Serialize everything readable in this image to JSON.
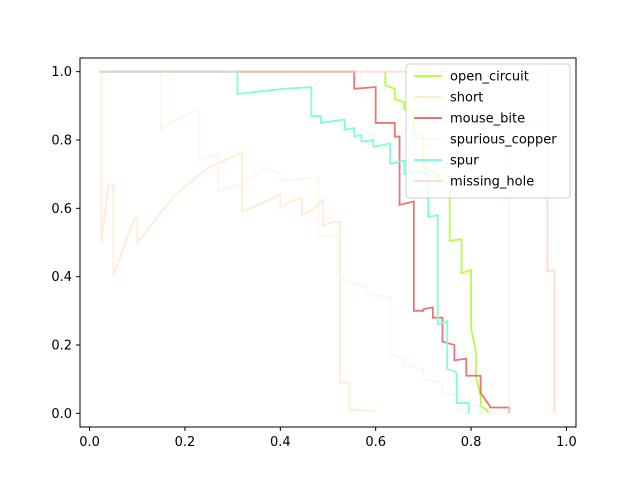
{
  "chart_data": {
    "type": "line",
    "title": "",
    "xlabel": "",
    "ylabel": "",
    "xlim": [
      -0.02,
      1.02
    ],
    "ylim": [
      -0.04,
      1.04
    ],
    "xticks": [
      0.0,
      0.2,
      0.4,
      0.6,
      0.8,
      1.0
    ],
    "xtick_labels": [
      "0.0",
      "0.2",
      "0.4",
      "0.6",
      "0.8",
      "1.0"
    ],
    "yticks": [
      0.0,
      0.2,
      0.4,
      0.6,
      0.8,
      1.0
    ],
    "ytick_labels": [
      "0.0",
      "0.2",
      "0.4",
      "0.6",
      "0.8",
      "1.0"
    ],
    "grid": false,
    "legend_position": "top-right",
    "series": [
      {
        "name": "open_circuit",
        "color": "#adff2f",
        "opacity": 0.9,
        "x": [
          0.62,
          0.62,
          0.64,
          0.64,
          0.66,
          0.66,
          0.68,
          0.68,
          0.7,
          0.7,
          0.73,
          0.73,
          0.755,
          0.755,
          0.78,
          0.78,
          0.8,
          0.8,
          0.81,
          0.81,
          0.82,
          0.82,
          0.835,
          0.835
        ],
        "y": [
          1.0,
          0.96,
          0.95,
          0.92,
          0.91,
          0.89,
          0.88,
          0.82,
          0.81,
          0.72,
          0.7,
          0.69,
          0.67,
          0.505,
          0.51,
          0.41,
          0.42,
          0.25,
          0.18,
          0.11,
          0.05,
          0.02,
          0.01,
          0.0
        ]
      },
      {
        "name": "short",
        "color": "#ffdead",
        "opacity": 0.55,
        "x": [
          0.025,
          0.025,
          0.04,
          0.05,
          0.05,
          0.075,
          0.095,
          0.1,
          0.1,
          0.18,
          0.25,
          0.3,
          0.32,
          0.32,
          0.37,
          0.4,
          0.4,
          0.42,
          0.445,
          0.445,
          0.47,
          0.49,
          0.49,
          0.51,
          0.525,
          0.525,
          0.545,
          0.545,
          0.56,
          0.58,
          0.6
        ],
        "y": [
          1.0,
          0.5,
          0.67,
          0.67,
          0.4,
          0.5,
          0.57,
          0.57,
          0.5,
          0.64,
          0.72,
          0.75,
          0.765,
          0.59,
          0.62,
          0.64,
          0.6,
          0.62,
          0.63,
          0.58,
          0.6,
          0.625,
          0.55,
          0.56,
          0.56,
          0.09,
          0.09,
          0.01,
          0.01,
          0.008,
          0.005
        ]
      },
      {
        "name": "mouse_bite",
        "color": "#e0605d",
        "opacity": 0.85,
        "x": [
          0.02,
          0.555,
          0.555,
          0.6,
          0.6,
          0.64,
          0.64,
          0.65,
          0.65,
          0.68,
          0.68,
          0.7,
          0.7,
          0.72,
          0.72,
          0.74,
          0.74,
          0.765,
          0.765,
          0.79,
          0.79,
          0.82,
          0.82,
          0.84,
          0.84,
          0.88,
          0.88
        ],
        "y": [
          1.0,
          1.0,
          0.95,
          0.955,
          0.85,
          0.85,
          0.81,
          0.81,
          0.61,
          0.62,
          0.3,
          0.3,
          0.305,
          0.31,
          0.28,
          0.28,
          0.21,
          0.2,
          0.155,
          0.16,
          0.11,
          0.11,
          0.06,
          0.02,
          0.017,
          0.017,
          0.0
        ]
      },
      {
        "name": "spurious_copper",
        "color": "#ffeed8",
        "opacity": 0.55,
        "x": [
          0.02,
          0.15,
          0.15,
          0.18,
          0.23,
          0.23,
          0.27,
          0.27,
          0.32,
          0.37,
          0.4,
          0.4,
          0.48,
          0.48,
          0.52,
          0.52,
          0.58,
          0.58,
          0.63,
          0.63,
          0.66,
          0.66,
          0.7,
          0.7,
          0.74,
          0.74,
          0.78,
          0.78,
          0.82,
          0.82,
          0.88,
          0.88,
          0.96,
          0.96
        ],
        "y": [
          1.0,
          1.0,
          0.83,
          0.86,
          0.89,
          0.74,
          0.76,
          0.65,
          0.67,
          0.72,
          0.7,
          0.68,
          0.69,
          0.52,
          0.52,
          0.4,
          0.37,
          0.35,
          0.34,
          0.17,
          0.16,
          0.14,
          0.13,
          0.1,
          0.09,
          0.06,
          0.05,
          0.03,
          0.02,
          0.0,
          0.0,
          0.85,
          0.85,
          0.41
        ]
      },
      {
        "name": "spur",
        "color": "#7fffd4",
        "opacity": 1.0,
        "x": [
          0.02,
          0.31,
          0.31,
          0.41,
          0.465,
          0.465,
          0.485,
          0.485,
          0.535,
          0.535,
          0.555,
          0.555,
          0.57,
          0.57,
          0.595,
          0.595,
          0.63,
          0.63,
          0.66,
          0.66,
          0.7,
          0.7,
          0.71,
          0.71,
          0.73,
          0.73,
          0.75,
          0.75,
          0.77,
          0.77,
          0.795,
          0.795
        ],
        "y": [
          1.0,
          1.0,
          0.935,
          0.95,
          0.955,
          0.87,
          0.87,
          0.85,
          0.86,
          0.83,
          0.835,
          0.81,
          0.815,
          0.795,
          0.8,
          0.78,
          0.79,
          0.73,
          0.74,
          0.7,
          0.71,
          0.7,
          0.7,
          0.575,
          0.58,
          0.26,
          0.27,
          0.13,
          0.12,
          0.03,
          0.03,
          0.0
        ]
      },
      {
        "name": "missing_hole",
        "color": "#ffcfc0",
        "opacity": 0.7,
        "x": [
          0.02,
          0.96,
          0.96,
          0.975,
          0.975
        ],
        "y": [
          1.0,
          1.0,
          0.415,
          0.42,
          0.0
        ]
      }
    ]
  }
}
